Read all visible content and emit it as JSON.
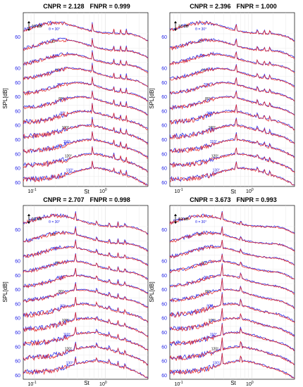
{
  "figure": {
    "ylabel": "SPL[dB]",
    "xlabel": "St",
    "level_tick": "60",
    "scale_bar": "10 dB",
    "theta_symbol": "θ = "
  },
  "chart_data": [
    {
      "type": "line",
      "title_cnpr": "CNPR = 2.128",
      "title_fnpr": "FNPR = 0.999",
      "x_scale": "log",
      "xlim": [
        0.07,
        4.0
      ],
      "x_ticks": [
        "10^-1",
        "10^0"
      ],
      "angles": [
        "30°",
        "40°",
        "50°",
        "60°",
        "70°",
        "80°",
        "90°",
        "100°",
        "110°",
        "120°",
        "130°"
      ],
      "ylabel": "SPL[dB]",
      "xlabel": "St",
      "tones_st": [
        0.66,
        1.32,
        1.65,
        1.98
      ],
      "series": [
        {
          "color": "#1f1fe6"
        },
        {
          "color": "#e61f1f"
        }
      ],
      "grid": true
    },
    {
      "type": "line",
      "title_cnpr": "CNPR = 2.396",
      "title_fnpr": "FNPR = 1.000",
      "x_scale": "log",
      "xlim": [
        0.07,
        4.0
      ],
      "x_ticks": [
        "10^-1",
        "10^0"
      ],
      "angles": [
        "30°",
        "40°",
        "50°",
        "60°",
        "70°",
        "80°",
        "90°",
        "100°",
        "110°",
        "120°",
        "130°"
      ],
      "ylabel": "SPL[dB]",
      "xlabel": "St",
      "tones_st": [
        0.6,
        1.2,
        1.5,
        1.8
      ],
      "series": [
        {
          "color": "#1f1fe6"
        },
        {
          "color": "#e61f1f"
        }
      ],
      "grid": true
    },
    {
      "type": "line",
      "title_cnpr": "CNPR = 2.707",
      "title_fnpr": "FNPR = 0.998",
      "x_scale": "log",
      "xlim": [
        0.07,
        4.0
      ],
      "x_ticks": [
        "10^-1",
        "10^0"
      ],
      "angles": [
        "30°",
        "40°",
        "50°",
        "60°",
        "70°",
        "80°",
        "90°",
        "100°",
        "110°",
        "120°",
        "130°"
      ],
      "ylabel": "SPL[dB]",
      "xlabel": "St",
      "tones_st": [
        0.38,
        0.76,
        1.14,
        1.52,
        1.9
      ],
      "series": [
        {
          "color": "#1f1fe6"
        },
        {
          "color": "#e61f1f"
        }
      ],
      "grid": true
    },
    {
      "type": "line",
      "title_cnpr": "CNPR = 3.673",
      "title_fnpr": "FNPR = 0.993",
      "x_scale": "log",
      "xlim": [
        0.07,
        4.0
      ],
      "x_ticks": [
        "10^-1",
        "10^0"
      ],
      "angles": [
        "30°",
        "40°",
        "50°",
        "60°",
        "70°",
        "80°",
        "90°",
        "100°",
        "110°",
        "120°",
        "130°"
      ],
      "ylabel": "SPL[dB]",
      "xlabel": "St",
      "tones_st": [
        0.38,
        0.7
      ],
      "series": [
        {
          "color": "#1f1fe6"
        },
        {
          "color": "#e61f1f"
        }
      ],
      "grid": true
    }
  ]
}
